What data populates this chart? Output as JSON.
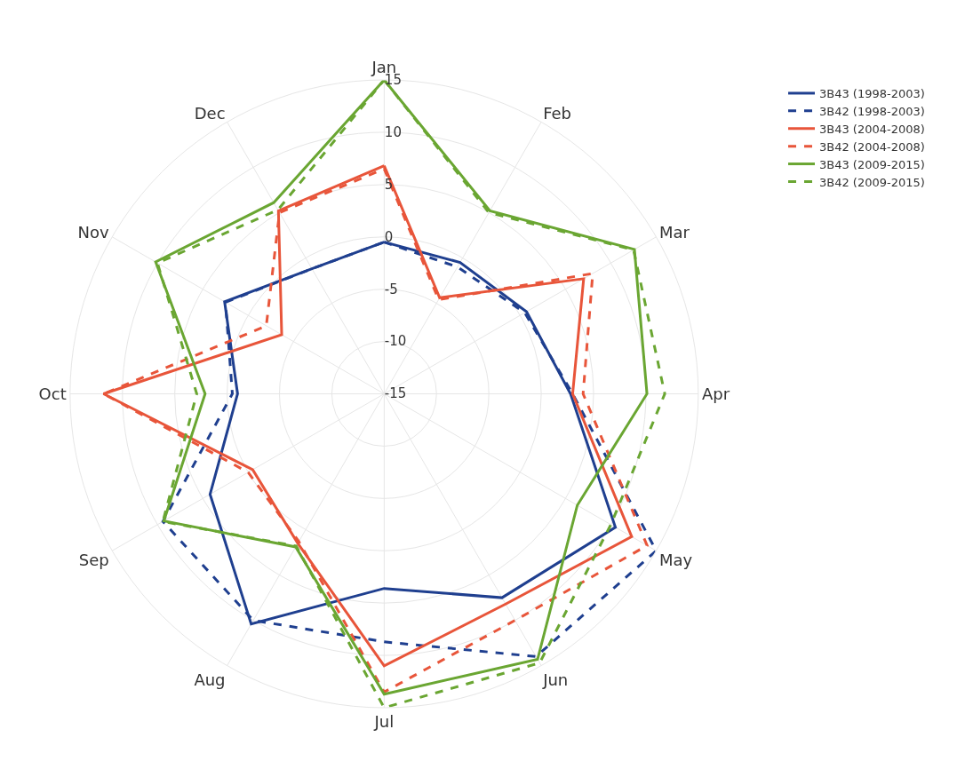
{
  "chart_data": {
    "type": "radar",
    "categories": [
      "Jan",
      "Feb",
      "Mar",
      "Apr",
      "May",
      "Jun",
      "Jul",
      "Aug",
      "Sep",
      "Oct",
      "Nov",
      "Dec"
    ],
    "ylim": [
      -15,
      15
    ],
    "yticks": [
      -15,
      -10,
      -5,
      0,
      5,
      10,
      15
    ],
    "grid": true,
    "legend": "top right",
    "marker": "none",
    "series": [
      {
        "name": "3B43 (1998-2003)",
        "color": "#1f3f8f",
        "line_style": "solid",
        "values": [
          -0.5,
          -0.5,
          0.7,
          2.8,
          10.5,
          7.5,
          3.6,
          10.4,
          4.2,
          -1,
          2.6,
          -1.2
        ]
      },
      {
        "name": "3B42 (1998-2003)",
        "color": "#1f3f8f",
        "line_style": "dashed",
        "values": [
          -0.5,
          -1,
          0.5,
          3,
          15,
          14,
          8.7,
          10,
          9.4,
          -0.5,
          2.5,
          -1.2
        ]
      },
      {
        "name": "3B43 (2004-2008)",
        "color": "#e8553a",
        "line_style": "solid",
        "values": [
          6.8,
          -4.4,
          7,
          3,
          12.3,
          8.2,
          11,
          1.5,
          -0.5,
          11.8,
          -3.7,
          5.2
        ]
      },
      {
        "name": "3B42 (2004-2008)",
        "color": "#e8553a",
        "line_style": "dashed",
        "values": [
          6.5,
          -4.6,
          8,
          4,
          14,
          10,
          13.5,
          1.3,
          0,
          11.8,
          -2,
          5
        ]
      },
      {
        "name": "3B43 (2009-2015)",
        "color": "#6aa632",
        "line_style": "solid",
        "values": [
          15,
          5.2,
          12.6,
          10.1,
          6.3,
          14.3,
          13.7,
          1.9,
          9.3,
          2.1,
          10.2,
          6.1
        ]
      },
      {
        "name": "3B42 (2009-2015)",
        "color": "#6aa632",
        "line_style": "dashed",
        "values": [
          15,
          5,
          12.5,
          11.8,
          10,
          14.7,
          15,
          1.8,
          9.4,
          2.9,
          10,
          5.3
        ]
      }
    ]
  }
}
